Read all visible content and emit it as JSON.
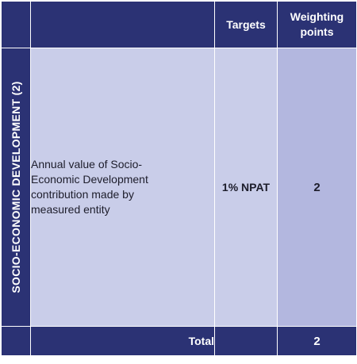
{
  "header": {
    "targets_label": "Targets",
    "weighting_points_label": "Weighting points"
  },
  "section": {
    "label": "SOCIO-ECONOMIC DEVELOPMENT (2)"
  },
  "row": {
    "description": "Annual value of Socio-Economic Development contribution made by measured entity",
    "target": "1% NPAT",
    "points": "2"
  },
  "footer": {
    "total_label": "Total",
    "total_points": "2"
  },
  "colors": {
    "header_bg": "#2b3274",
    "cell_light": "#c9cde9",
    "cell_medium": "#b3b7df"
  }
}
